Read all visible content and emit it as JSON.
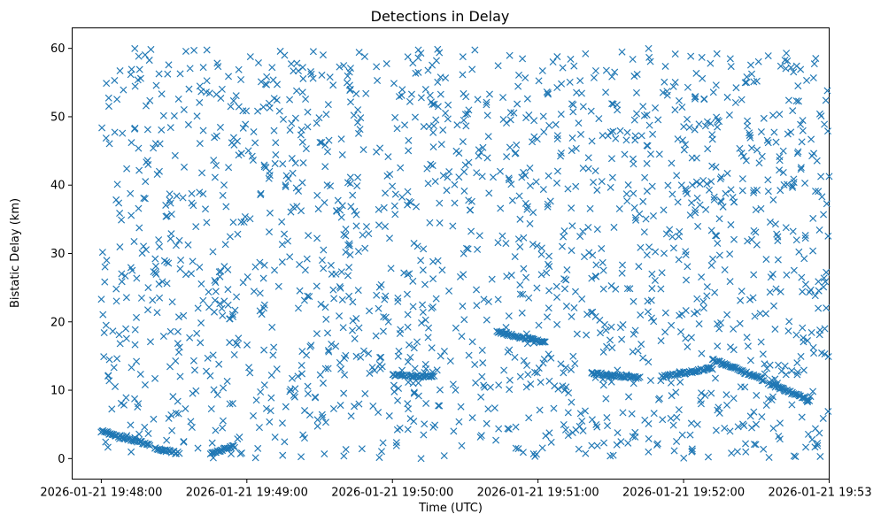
{
  "chart_data": {
    "type": "scatter",
    "title": "Detections in Delay",
    "xlabel": "Time (UTC)",
    "ylabel": "Bistatic Delay (km)",
    "marker": "x",
    "color": "#1f77b4",
    "grid": false,
    "xlim": [
      "2026-01-21 19:47:48",
      "2026-01-21 19:53:00"
    ],
    "ylim": [
      -3,
      63
    ],
    "xticks": [
      "2026-01-21 19:48:00",
      "2026-01-21 19:49:00",
      "2026-01-21 19:50:00",
      "2026-01-21 19:51:00",
      "2026-01-21 19:52:00",
      "2026-01-21 19:53:00"
    ],
    "yticks": [
      0,
      10,
      20,
      30,
      40,
      50,
      60
    ],
    "series": [
      {
        "tracks": [
          {
            "t_start": "2026-01-21 19:48:00",
            "t_end": "2026-01-21 19:48:20",
            "delay_start": 4.0,
            "delay_end": 2.0
          },
          {
            "t_start": "2026-01-21 19:48:22",
            "t_end": "2026-01-21 19:48:32",
            "delay_start": 1.5,
            "delay_end": 0.8
          },
          {
            "t_start": "2026-01-21 19:48:45",
            "t_end": "2026-01-21 19:48:55",
            "delay_start": 0.8,
            "delay_end": 1.8
          },
          {
            "t_start": "2026-01-21 19:50:00",
            "t_end": "2026-01-21 19:50:17",
            "delay_start": 12.2,
            "delay_end": 12.0
          },
          {
            "t_start": "2026-01-21 19:50:43",
            "t_end": "2026-01-21 19:51:03",
            "delay_start": 18.5,
            "delay_end": 17.0
          },
          {
            "t_start": "2026-01-21 19:51:22",
            "t_end": "2026-01-21 19:51:42",
            "delay_start": 12.5,
            "delay_end": 11.8
          },
          {
            "t_start": "2026-01-21 19:51:51",
            "t_end": "2026-01-21 19:52:12",
            "delay_start": 12.0,
            "delay_end": 13.2
          },
          {
            "t_start": "2026-01-21 19:52:12",
            "t_end": "2026-01-21 19:52:33",
            "delay_start": 14.5,
            "delay_end": 11.5
          },
          {
            "t_start": "2026-01-21 19:52:35",
            "t_end": "2026-01-21 19:52:52",
            "delay_start": 11.0,
            "delay_end": 8.5
          }
        ],
        "clutter_detections": {
          "t_range": [
            "2026-01-21 19:48:00",
            "2026-01-21 19:53:00"
          ],
          "delay_range": [
            0,
            60
          ],
          "count": 1700
        }
      }
    ]
  }
}
